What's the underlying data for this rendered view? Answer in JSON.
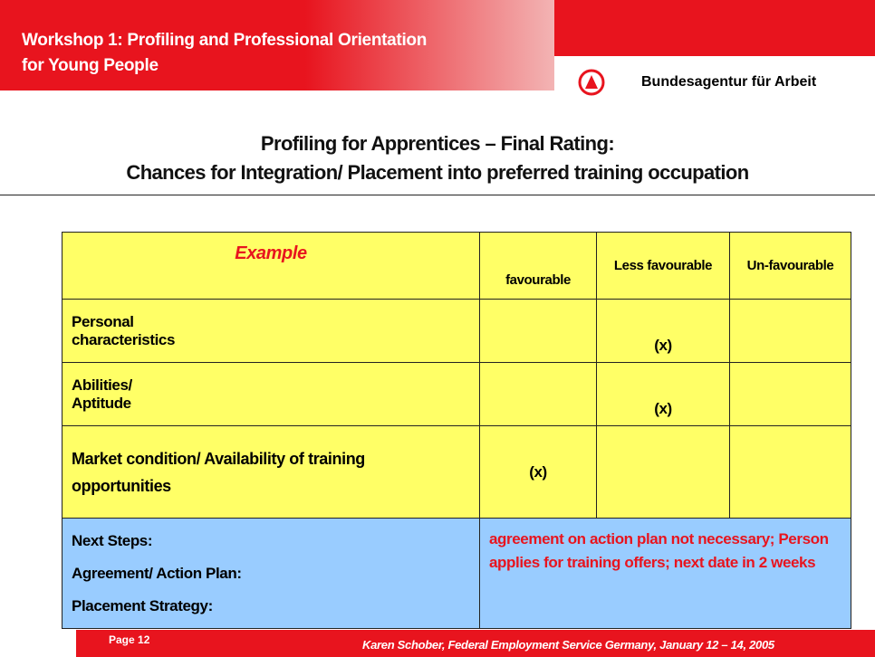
{
  "header": {
    "title_lines": [
      "Workshop 1: Profiling and Professional Orientation",
      "for Young People"
    ],
    "organization": "Bundesagentur für Arbeit"
  },
  "slide_title_lines": [
    "Profiling for Apprentices – Final Rating:",
    "Chances for Integration/ Placement into preferred training occupation"
  ],
  "table": {
    "header": [
      "Example",
      "favourable",
      "Less favourable",
      "Un-favourable"
    ],
    "rows": [
      [
        "Personal characteristics",
        "",
        "(x)",
        ""
      ],
      [
        "Abilities/ Aptitude",
        "",
        "(x)",
        ""
      ],
      [
        "Market condition/ Availability of training opportunities",
        "(x)",
        "",
        ""
      ]
    ],
    "next_steps": {
      "labels": [
        "Next Steps:",
        "Agreement/ Action Plan:",
        "Placement Strategy:"
      ],
      "text": "agreement on action plan not necessary; Person applies for training offers; next date in 2 weeks"
    }
  },
  "footer": {
    "page": "Page 12",
    "credit": "Karen Schober, Federal Employment Service Germany, January 12 – 14, 2005"
  }
}
